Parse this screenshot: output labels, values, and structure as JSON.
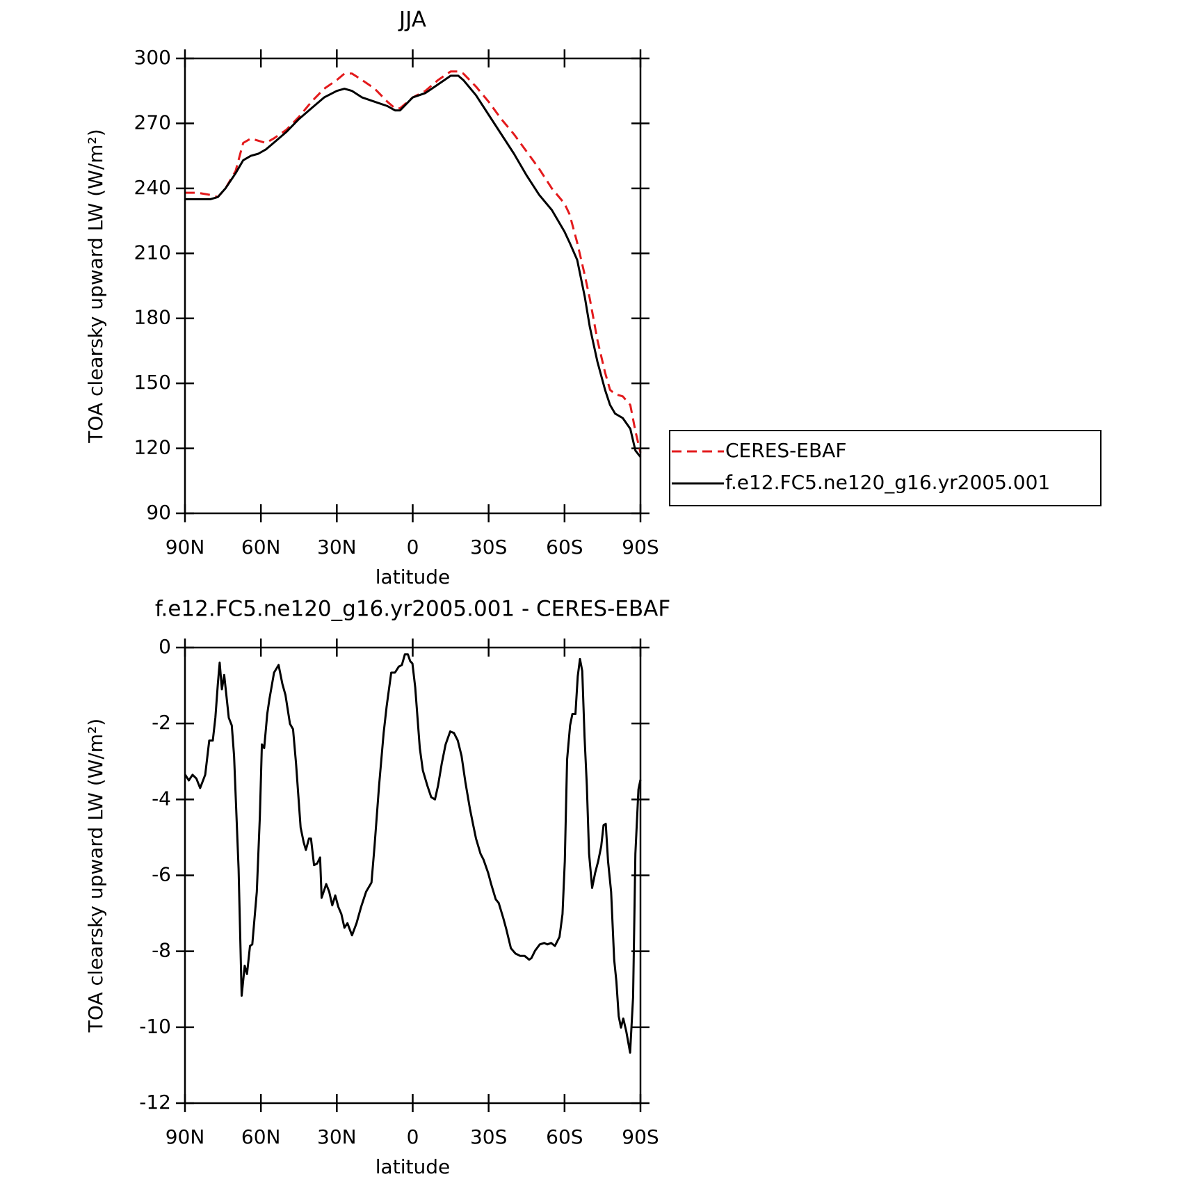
{
  "chart_data": [
    {
      "type": "line",
      "title": "JJA",
      "xlabel": "latitude",
      "ylabel": "TOA clearsky upward LW (W/m²)",
      "x": [
        90,
        85,
        80,
        77,
        74,
        70,
        67,
        64,
        61,
        58,
        55,
        50,
        45,
        40,
        35,
        30,
        27,
        24,
        20,
        15,
        10,
        7,
        5,
        0,
        -5,
        -10,
        -15,
        -18,
        -20,
        -25,
        -30,
        -35,
        -40,
        -45,
        -50,
        -55,
        -60,
        -62,
        -65,
        -68,
        -70,
        -73,
        -76,
        -78,
        -80,
        -83,
        -86,
        -88,
        -90
      ],
      "series": [
        {
          "name": "CERES-EBAF",
          "color": "#e31a1c",
          "linestyle": "dashed",
          "values": [
            238,
            238,
            237,
            236,
            240,
            248,
            261,
            263,
            262,
            261,
            263,
            267,
            273,
            280,
            286,
            290,
            293,
            293,
            290,
            286,
            280,
            277,
            277,
            282,
            285,
            290,
            294,
            294,
            293,
            287,
            280,
            272,
            265,
            257,
            249,
            240,
            233,
            228,
            215,
            200,
            189,
            170,
            155,
            147,
            145,
            144,
            140,
            128,
            118
          ]
        },
        {
          "name": "f.e12.FC5.ne120_g16.yr2005.001",
          "color": "#000000",
          "linestyle": "solid",
          "values": [
            235,
            235,
            235,
            236,
            240,
            247,
            253,
            255,
            256,
            258,
            261,
            266,
            272,
            277,
            282,
            285,
            286,
            285,
            282,
            280,
            278,
            276,
            276,
            282,
            284,
            288,
            292,
            292,
            290,
            283,
            274,
            265,
            256,
            246,
            237,
            230,
            220,
            215,
            207,
            190,
            176,
            160,
            147,
            140,
            136,
            134,
            129,
            119,
            116
          ]
        }
      ],
      "xlim": [
        90,
        -90
      ],
      "xticks": [
        {
          "value": 90,
          "label": "90N"
        },
        {
          "value": 60,
          "label": "60N"
        },
        {
          "value": 30,
          "label": "30N"
        },
        0,
        {
          "value": -30,
          "label": "30S"
        },
        {
          "value": -60,
          "label": "60S"
        },
        {
          "value": -90,
          "label": "90S"
        }
      ],
      "ylim": [
        90,
        300
      ],
      "yticks": [
        90,
        120,
        150,
        180,
        210,
        240,
        270,
        300
      ],
      "legend": "right"
    },
    {
      "type": "line",
      "title": "f.e12.FC5.ne120_g16.yr2005.001 - CERES-EBAF",
      "xlabel": "latitude",
      "ylabel": "TOA clearsky upward LW (W/m²)",
      "x": [
        90,
        88.5,
        87,
        85.5,
        84,
        82,
        80.4,
        79,
        78,
        77,
        76.3,
        75.4,
        74.5,
        72.7,
        71.5,
        70.6,
        68.8,
        67.6,
        66.4,
        65.5,
        64.3,
        63.4,
        61.6,
        60.4,
        59.6,
        58.7,
        57.5,
        56.6,
        54.8,
        53,
        51.5,
        50.3,
        48.5,
        47.3,
        46.1,
        44.3,
        43.1,
        42.2,
        41,
        40.2,
        39,
        37.8,
        36.6,
        36,
        34.2,
        33,
        31.8,
        30.6,
        29.4,
        28.2,
        27,
        25.8,
        24,
        22.2,
        20.4,
        18.4,
        16.3,
        15.1,
        13.3,
        11.5,
        10.3,
        8.5,
        7,
        5.5,
        4.3,
        3.1,
        1.9,
        1,
        0.1,
        -1,
        -2.8,
        -4,
        -5.8,
        -7.3,
        -8.8,
        -10,
        -11.5,
        -13,
        -14.8,
        -16.3,
        -17.8,
        -19.3,
        -20.8,
        -22.6,
        -23.8,
        -25,
        -26.8,
        -28,
        -29.8,
        -31,
        -32.8,
        -34,
        -35.8,
        -37,
        -38.8,
        -40.6,
        -42.4,
        -44.2,
        -46,
        -46.9,
        -48.4,
        -50.2,
        -52,
        -53.2,
        -54.7,
        -56.2,
        -58,
        -59.2,
        -60.1,
        -61,
        -62.2,
        -63.1,
        -64.3,
        -65.2,
        -66.1,
        -67,
        -67.9,
        -68.8,
        -69.7,
        -70.9,
        -72.1,
        -73.3,
        -74.5,
        -75.4,
        -76.3,
        -77.2,
        -78.4,
        -79.6,
        -80.5,
        -81.4,
        -82.3,
        -83.2,
        -84.4,
        -85.9,
        -87.1,
        -88,
        -89.2,
        -90
      ],
      "series": [
        {
          "color": "#000000",
          "linestyle": "solid",
          "values": [
            -3.34,
            -3.5,
            -3.35,
            -3.45,
            -3.7,
            -3.35,
            -2.45,
            -2.45,
            -1.85,
            -0.95,
            -0.4,
            -1.1,
            -0.72,
            -1.85,
            -2.05,
            -2.85,
            -5.83,
            -9.17,
            -8.38,
            -8.6,
            -7.86,
            -7.82,
            -6.43,
            -4.44,
            -2.55,
            -2.65,
            -1.75,
            -1.35,
            -0.66,
            -0.46,
            -0.96,
            -1.25,
            -2.01,
            -2.15,
            -3.05,
            -4.74,
            -5.13,
            -5.33,
            -5.03,
            -5.03,
            -5.73,
            -5.69,
            -5.53,
            -6.59,
            -6.23,
            -6.43,
            -6.79,
            -6.53,
            -6.83,
            -7.02,
            -7.38,
            -7.26,
            -7.58,
            -7.26,
            -6.83,
            -6.43,
            -6.19,
            -5.23,
            -3.64,
            -2.25,
            -1.55,
            -0.66,
            -0.66,
            -0.5,
            -0.46,
            -0.18,
            -0.18,
            -0.36,
            -0.42,
            -1.05,
            -2.65,
            -3.24,
            -3.64,
            -3.94,
            -4.0,
            -3.64,
            -3.05,
            -2.55,
            -2.21,
            -2.25,
            -2.45,
            -2.85,
            -3.54,
            -4.24,
            -4.64,
            -5.03,
            -5.43,
            -5.59,
            -5.93,
            -6.23,
            -6.63,
            -6.73,
            -7.13,
            -7.42,
            -7.92,
            -8.06,
            -8.12,
            -8.12,
            -8.22,
            -8.18,
            -7.98,
            -7.82,
            -7.78,
            -7.82,
            -7.78,
            -7.86,
            -7.62,
            -7.02,
            -5.63,
            -2.95,
            -2.05,
            -1.75,
            -1.75,
            -0.76,
            -0.3,
            -0.62,
            -2.35,
            -3.64,
            -5.43,
            -6.33,
            -5.93,
            -5.63,
            -5.23,
            -4.68,
            -4.64,
            -5.63,
            -6.43,
            -8.22,
            -8.8,
            -9.71,
            -10.01,
            -9.77,
            -10.11,
            -10.67,
            -9.21,
            -5.43,
            -3.74,
            -3.48
          ]
        }
      ],
      "xlim": [
        90,
        -90
      ],
      "xticks": [
        {
          "value": 90,
          "label": "90N"
        },
        {
          "value": 60,
          "label": "60N"
        },
        {
          "value": 30,
          "label": "30N"
        },
        0,
        {
          "value": -30,
          "label": "30S"
        },
        {
          "value": -60,
          "label": "60S"
        },
        {
          "value": -90,
          "label": "90S"
        }
      ],
      "ylim": [
        -12,
        0
      ],
      "yticks": [
        -12,
        -10,
        -8,
        -6,
        -4,
        -2,
        0
      ]
    }
  ]
}
